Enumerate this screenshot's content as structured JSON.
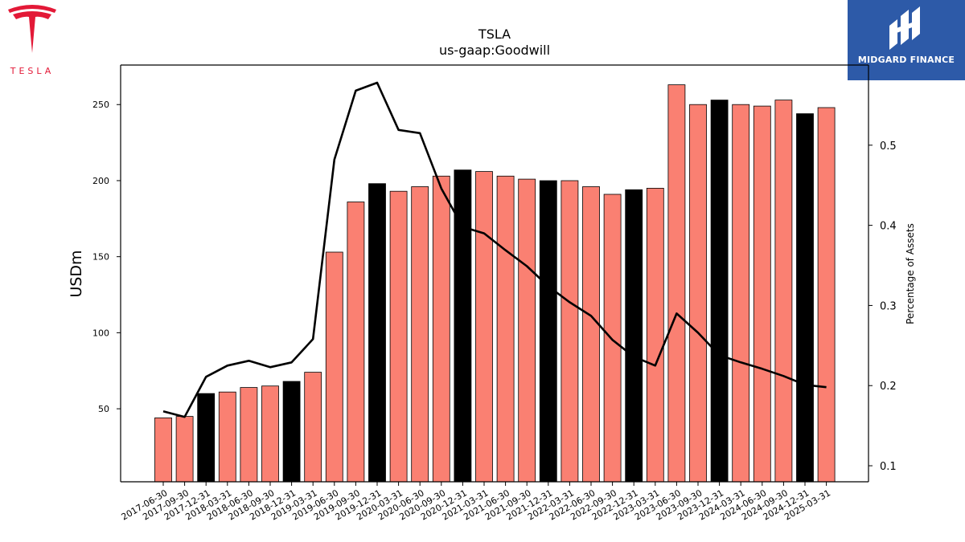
{
  "brand": {
    "left_logo_text": "TESLA",
    "right_logo_text": "MIDGARD FINANCE",
    "tesla_red": "#e31937",
    "midgard_blue": "#2d5aa8"
  },
  "chart_data": {
    "type": "bar",
    "title": "TSLA",
    "subtitle": "us-gaap:Goodwill",
    "ylabel": "USDm",
    "y2label": "Percentage of Assets",
    "ylim": [
      2,
      276
    ],
    "y2lim": [
      0.08,
      0.6
    ],
    "yticks": [
      50,
      100,
      150,
      200,
      250
    ],
    "y2ticks": [
      0.1,
      0.2,
      0.3,
      0.4,
      0.5
    ],
    "grid": false,
    "categories": [
      "2017-06-30",
      "2017-09-30",
      "2017-12-31",
      "2018-03-31",
      "2018-06-30",
      "2018-09-30",
      "2018-12-31",
      "2019-03-31",
      "2019-06-30",
      "2019-09-30",
      "2019-12-31",
      "2020-03-31",
      "2020-06-30",
      "2020-09-30",
      "2020-12-31",
      "2021-03-31",
      "2021-06-30",
      "2021-09-30",
      "2021-12-31",
      "2022-03-31",
      "2022-06-30",
      "2022-09-30",
      "2022-12-31",
      "2023-03-31",
      "2023-06-30",
      "2023-09-30",
      "2023-12-31",
      "2024-03-31",
      "2024-06-30",
      "2024-09-30",
      "2024-12-31",
      "2025-03-31"
    ],
    "series": [
      {
        "type": "bar",
        "values": [
          44,
          45,
          60,
          61,
          64,
          65,
          68,
          74,
          153,
          186,
          198,
          193,
          196,
          203,
          207,
          206,
          203,
          201,
          200,
          200,
          196,
          191,
          194,
          195,
          263,
          250,
          253,
          250,
          249,
          253,
          244,
          248
        ],
        "color": "#fa8072",
        "highlight_color": "#000000",
        "highlight_categories": [
          "2017-12-31",
          "2018-12-31",
          "2019-12-31",
          "2020-12-31",
          "2021-12-31",
          "2022-12-31",
          "2023-12-31",
          "2024-12-31"
        ]
      },
      {
        "type": "line",
        "axis": "right",
        "values": [
          0.168,
          0.161,
          0.211,
          0.225,
          0.231,
          0.223,
          0.229,
          0.258,
          0.482,
          0.568,
          0.578,
          0.519,
          0.515,
          0.446,
          0.398,
          0.39,
          0.369,
          0.349,
          0.324,
          0.304,
          0.287,
          0.257,
          0.236,
          0.225,
          0.29,
          0.266,
          0.238,
          0.229,
          0.221,
          0.212,
          0.201,
          0.198
        ],
        "color": "#000000"
      }
    ]
  }
}
